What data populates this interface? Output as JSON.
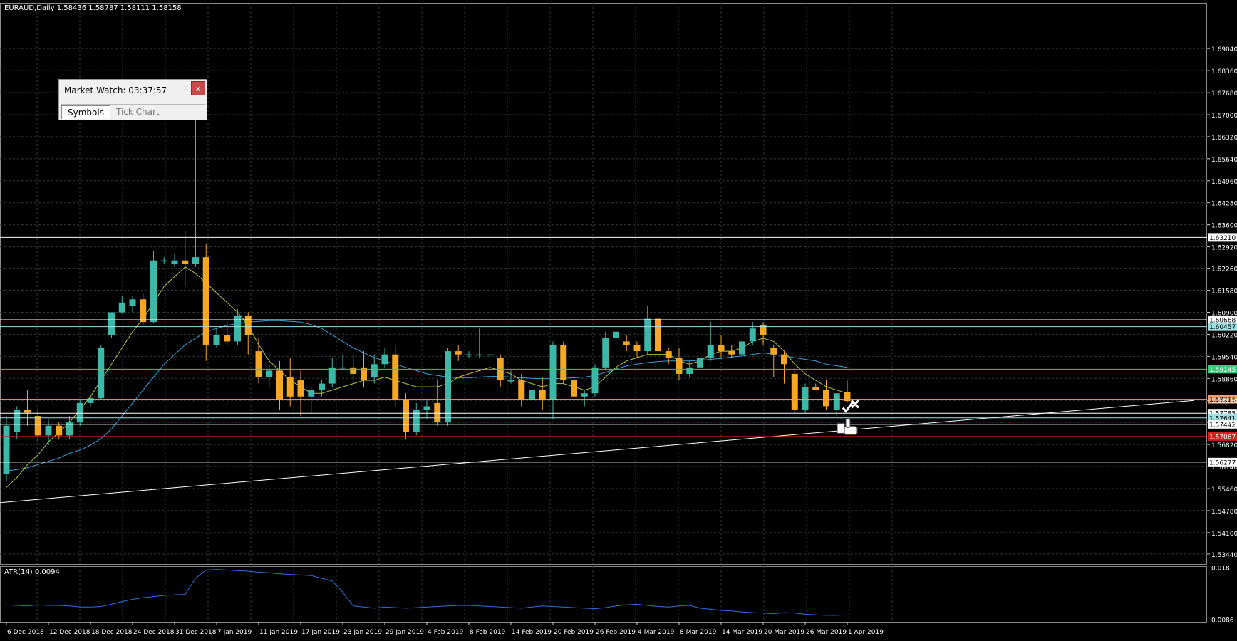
{
  "window": {
    "symbol_info": "EURAUD,Daily  1.58436 1.58787 1.58111 1.58158",
    "indicator_label": "ATR(14) 0.0094"
  },
  "market_watch": {
    "title": "Market Watch: 03:37:57",
    "close_label": "x",
    "tabs": [
      "Symbols",
      "Tick Chart"
    ]
  },
  "colors": {
    "background": "#000000",
    "grid": "#2e3a3a",
    "bull": "#3cb8a8",
    "bear": "#f5a623",
    "ma_fast": "#b5c93a",
    "ma_slow": "#3aa0d8",
    "atr": "#2f6fe0",
    "hline_white": "#ffffff",
    "hline_cyan": "#9fe0e0",
    "hline_green": "#3cc97a",
    "hline_orange": "#f0a070",
    "hline_red": "#d02020",
    "trendline": "#ffffff"
  },
  "chart_data": [
    {
      "type": "candlestick",
      "title": "EURAUD,Daily",
      "ylim": [
        1.5313,
        1.7045
      ],
      "y_ticks": [
        "1.69040",
        "1.68360",
        "1.67680",
        "1.67000",
        "1.66320",
        "1.65640",
        "1.64960",
        "1.64280",
        "1.63600",
        "1.62920",
        "1.62260",
        "1.61580",
        "1.60900",
        "1.60220",
        "1.59540",
        "1.58860",
        "1.58180",
        "1.57500",
        "1.56820",
        "1.56140",
        "1.55460",
        "1.54780",
        "1.54100",
        "1.53440"
      ],
      "x_ticks": [
        {
          "label": "6 Dec 2018",
          "index": 0
        },
        {
          "label": "12 Dec 2018",
          "index": 4
        },
        {
          "label": "18 Dec 2018",
          "index": 8
        },
        {
          "label": "24 Dec 2018",
          "index": 12
        },
        {
          "label": "31 Dec 2018",
          "index": 16
        },
        {
          "label": "7 Jan 2019",
          "index": 20
        },
        {
          "label": "11 Jan 2019",
          "index": 24
        },
        {
          "label": "17 Jan 2019",
          "index": 28
        },
        {
          "label": "23 Jan 2019",
          "index": 32
        },
        {
          "label": "29 Jan 2019",
          "index": 36
        },
        {
          "label": "4 Feb 2019",
          "index": 40
        },
        {
          "label": "8 Feb 2019",
          "index": 44
        },
        {
          "label": "14 Feb 2019",
          "index": 48
        },
        {
          "label": "20 Feb 2019",
          "index": 52
        },
        {
          "label": "26 Feb 2019",
          "index": 56
        },
        {
          "label": "4 Mar 2019",
          "index": 60
        },
        {
          "label": "8 Mar 2019",
          "index": 64
        },
        {
          "label": "14 Mar 2019",
          "index": 68
        },
        {
          "label": "20 Mar 2019",
          "index": 72
        },
        {
          "label": "26 Mar 2019",
          "index": 76
        },
        {
          "label": "1 Apr 2019",
          "index": 80
        }
      ],
      "candles": [
        {
          "o": 1.559,
          "h": 1.577,
          "l": 1.557,
          "c": 1.574
        },
        {
          "o": 1.572,
          "h": 1.58,
          "l": 1.57,
          "c": 1.579
        },
        {
          "o": 1.579,
          "h": 1.585,
          "l": 1.574,
          "c": 1.578
        },
        {
          "o": 1.577,
          "h": 1.579,
          "l": 1.569,
          "c": 1.571
        },
        {
          "o": 1.571,
          "h": 1.576,
          "l": 1.568,
          "c": 1.574
        },
        {
          "o": 1.574,
          "h": 1.575,
          "l": 1.57,
          "c": 1.571
        },
        {
          "o": 1.571,
          "h": 1.577,
          "l": 1.57,
          "c": 1.575
        },
        {
          "o": 1.575,
          "h": 1.582,
          "l": 1.574,
          "c": 1.581
        },
        {
          "o": 1.581,
          "h": 1.583,
          "l": 1.58,
          "c": 1.5825
        },
        {
          "o": 1.5825,
          "h": 1.599,
          "l": 1.582,
          "c": 1.598
        },
        {
          "o": 1.602,
          "h": 1.609,
          "l": 1.601,
          "c": 1.609
        },
        {
          "o": 1.609,
          "h": 1.614,
          "l": 1.6085,
          "c": 1.612
        },
        {
          "o": 1.611,
          "h": 1.614,
          "l": 1.609,
          "c": 1.613
        },
        {
          "o": 1.613,
          "h": 1.615,
          "l": 1.605,
          "c": 1.606
        },
        {
          "o": 1.606,
          "h": 1.628,
          "l": 1.6055,
          "c": 1.625
        },
        {
          "o": 1.625,
          "h": 1.626,
          "l": 1.624,
          "c": 1.625
        },
        {
          "o": 1.624,
          "h": 1.627,
          "l": 1.623,
          "c": 1.625
        },
        {
          "o": 1.625,
          "h": 1.634,
          "l": 1.617,
          "c": 1.624
        },
        {
          "o": 1.624,
          "h": 1.67,
          "l": 1.623,
          "c": 1.626
        },
        {
          "o": 1.626,
          "h": 1.63,
          "l": 1.594,
          "c": 1.599
        },
        {
          "o": 1.599,
          "h": 1.604,
          "l": 1.598,
          "c": 1.602
        },
        {
          "o": 1.602,
          "h": 1.606,
          "l": 1.599,
          "c": 1.6
        },
        {
          "o": 1.6,
          "h": 1.61,
          "l": 1.599,
          "c": 1.608
        },
        {
          "o": 1.608,
          "h": 1.609,
          "l": 1.596,
          "c": 1.602
        },
        {
          "o": 1.597,
          "h": 1.601,
          "l": 1.587,
          "c": 1.589
        },
        {
          "o": 1.589,
          "h": 1.593,
          "l": 1.586,
          "c": 1.591
        },
        {
          "o": 1.591,
          "h": 1.594,
          "l": 1.579,
          "c": 1.582
        },
        {
          "o": 1.589,
          "h": 1.595,
          "l": 1.58,
          "c": 1.583
        },
        {
          "o": 1.588,
          "h": 1.591,
          "l": 1.577,
          "c": 1.583
        },
        {
          "o": 1.583,
          "h": 1.586,
          "l": 1.578,
          "c": 1.585
        },
        {
          "o": 1.585,
          "h": 1.588,
          "l": 1.583,
          "c": 1.587
        },
        {
          "o": 1.587,
          "h": 1.595,
          "l": 1.586,
          "c": 1.592
        },
        {
          "o": 1.592,
          "h": 1.596,
          "l": 1.591,
          "c": 1.592
        },
        {
          "o": 1.592,
          "h": 1.596,
          "l": 1.588,
          "c": 1.59
        },
        {
          "o": 1.592,
          "h": 1.597,
          "l": 1.586,
          "c": 1.588
        },
        {
          "o": 1.589,
          "h": 1.596,
          "l": 1.587,
          "c": 1.593
        },
        {
          "o": 1.593,
          "h": 1.598,
          "l": 1.592,
          "c": 1.596
        },
        {
          "o": 1.596,
          "h": 1.599,
          "l": 1.58,
          "c": 1.582
        },
        {
          "o": 1.582,
          "h": 1.584,
          "l": 1.57,
          "c": 1.572
        },
        {
          "o": 1.572,
          "h": 1.581,
          "l": 1.571,
          "c": 1.579
        },
        {
          "o": 1.579,
          "h": 1.582,
          "l": 1.576,
          "c": 1.58
        },
        {
          "o": 1.581,
          "h": 1.588,
          "l": 1.574,
          "c": 1.575
        },
        {
          "o": 1.575,
          "h": 1.598,
          "l": 1.574,
          "c": 1.597
        },
        {
          "o": 1.597,
          "h": 1.599,
          "l": 1.594,
          "c": 1.596
        },
        {
          "o": 1.596,
          "h": 1.597,
          "l": 1.595,
          "c": 1.596
        },
        {
          "o": 1.596,
          "h": 1.604,
          "l": 1.595,
          "c": 1.596
        },
        {
          "o": 1.596,
          "h": 1.597,
          "l": 1.595,
          "c": 1.596
        },
        {
          "o": 1.595,
          "h": 1.596,
          "l": 1.586,
          "c": 1.588
        },
        {
          "o": 1.588,
          "h": 1.591,
          "l": 1.587,
          "c": 1.588
        },
        {
          "o": 1.588,
          "h": 1.59,
          "l": 1.58,
          "c": 1.582
        },
        {
          "o": 1.582,
          "h": 1.588,
          "l": 1.581,
          "c": 1.585
        },
        {
          "o": 1.585,
          "h": 1.589,
          "l": 1.579,
          "c": 1.582
        },
        {
          "o": 1.582,
          "h": 1.6,
          "l": 1.576,
          "c": 1.599
        },
        {
          "o": 1.599,
          "h": 1.6,
          "l": 1.587,
          "c": 1.588
        },
        {
          "o": 1.588,
          "h": 1.59,
          "l": 1.581,
          "c": 1.583
        },
        {
          "o": 1.583,
          "h": 1.585,
          "l": 1.58,
          "c": 1.584
        },
        {
          "o": 1.584,
          "h": 1.593,
          "l": 1.583,
          "c": 1.592
        },
        {
          "o": 1.592,
          "h": 1.603,
          "l": 1.591,
          "c": 1.601
        },
        {
          "o": 1.601,
          "h": 1.604,
          "l": 1.599,
          "c": 1.603
        },
        {
          "o": 1.6,
          "h": 1.602,
          "l": 1.597,
          "c": 1.599
        },
        {
          "o": 1.599,
          "h": 1.6,
          "l": 1.595,
          "c": 1.597
        },
        {
          "o": 1.597,
          "h": 1.611,
          "l": 1.596,
          "c": 1.607
        },
        {
          "o": 1.607,
          "h": 1.609,
          "l": 1.596,
          "c": 1.597
        },
        {
          "o": 1.597,
          "h": 1.598,
          "l": 1.593,
          "c": 1.595
        },
        {
          "o": 1.595,
          "h": 1.598,
          "l": 1.588,
          "c": 1.59
        },
        {
          "o": 1.59,
          "h": 1.594,
          "l": 1.589,
          "c": 1.592
        },
        {
          "o": 1.592,
          "h": 1.596,
          "l": 1.591,
          "c": 1.595
        },
        {
          "o": 1.595,
          "h": 1.606,
          "l": 1.594,
          "c": 1.599
        },
        {
          "o": 1.599,
          "h": 1.602,
          "l": 1.595,
          "c": 1.597
        },
        {
          "o": 1.597,
          "h": 1.599,
          "l": 1.595,
          "c": 1.596
        },
        {
          "o": 1.596,
          "h": 1.602,
          "l": 1.595,
          "c": 1.6
        },
        {
          "o": 1.6,
          "h": 1.606,
          "l": 1.599,
          "c": 1.604
        },
        {
          "o": 1.605,
          "h": 1.606,
          "l": 1.599,
          "c": 1.602
        },
        {
          "o": 1.598,
          "h": 1.599,
          "l": 1.589,
          "c": 1.596
        },
        {
          "o": 1.596,
          "h": 1.597,
          "l": 1.587,
          "c": 1.593
        },
        {
          "o": 1.59,
          "h": 1.592,
          "l": 1.578,
          "c": 1.579
        },
        {
          "o": 1.579,
          "h": 1.587,
          "l": 1.578,
          "c": 1.586
        },
        {
          "o": 1.586,
          "h": 1.587,
          "l": 1.585,
          "c": 1.585
        },
        {
          "o": 1.585,
          "h": 1.588,
          "l": 1.579,
          "c": 1.58
        },
        {
          "o": 1.579,
          "h": 1.584,
          "l": 1.577,
          "c": 1.584
        },
        {
          "o": 1.5844,
          "h": 1.5879,
          "l": 1.5811,
          "c": 1.5816
        }
      ],
      "ma_fast": [
        1.555,
        1.558,
        1.562,
        1.565,
        1.569,
        1.572,
        1.575,
        1.579,
        1.583,
        1.588,
        1.593,
        1.598,
        1.603,
        1.607,
        1.612,
        1.617,
        1.62,
        1.623,
        1.621,
        1.618,
        1.615,
        1.612,
        1.609,
        1.605,
        1.599,
        1.594,
        1.591,
        1.588,
        1.586,
        1.584,
        1.584,
        1.585,
        1.586,
        1.587,
        1.588,
        1.588,
        1.589,
        1.588,
        1.587,
        1.586,
        1.586,
        1.586,
        1.587,
        1.589,
        1.59,
        1.591,
        1.592,
        1.591,
        1.59,
        1.588,
        1.587,
        1.586,
        1.587,
        1.587,
        1.586,
        1.585,
        1.586,
        1.589,
        1.592,
        1.594,
        1.595,
        1.596,
        1.596,
        1.596,
        1.594,
        1.593,
        1.594,
        1.596,
        1.597,
        1.597,
        1.598,
        1.6,
        1.601,
        1.6,
        1.597,
        1.593,
        1.59,
        1.588,
        1.586,
        1.585,
        1.584
      ],
      "ma_slow": [
        1.56,
        1.5605,
        1.561,
        1.562,
        1.563,
        1.564,
        1.5655,
        1.5665,
        1.568,
        1.57,
        1.573,
        1.577,
        1.581,
        1.585,
        1.589,
        1.593,
        1.596,
        1.599,
        1.601,
        1.603,
        1.604,
        1.605,
        1.6055,
        1.606,
        1.6062,
        1.6064,
        1.6064,
        1.6062,
        1.606,
        1.6052,
        1.604,
        1.602,
        1.6,
        1.598,
        1.5965,
        1.595,
        1.594,
        1.593,
        1.592,
        1.591,
        1.59,
        1.5895,
        1.589,
        1.5888,
        1.5888,
        1.589,
        1.5892,
        1.5892,
        1.589,
        1.5888,
        1.5886,
        1.5885,
        1.5885,
        1.5886,
        1.5888,
        1.589,
        1.5895,
        1.5905,
        1.5915,
        1.5925,
        1.593,
        1.5935,
        1.5938,
        1.594,
        1.594,
        1.594,
        1.5942,
        1.5945,
        1.5948,
        1.5952,
        1.5955,
        1.596,
        1.5965,
        1.596,
        1.5955,
        1.595,
        1.5945,
        1.594,
        1.593,
        1.5925,
        1.592
      ],
      "horizontal_lines": [
        {
          "price": 1.6321,
          "label": "1.63210",
          "role": "white"
        },
        {
          "price": 1.60668,
          "label": "1.60668",
          "role": "white"
        },
        {
          "price": 1.60457,
          "label": "1.60457",
          "role": "cyan"
        },
        {
          "price": 1.59145,
          "label": "1.59145",
          "role": "green"
        },
        {
          "price": 1.58216,
          "label": "1.58216",
          "role": "orange"
        },
        {
          "price": 1.57785,
          "label": "1.57785",
          "role": "white"
        },
        {
          "price": 1.57641,
          "label": "1.57641",
          "role": "cyan"
        },
        {
          "price": 1.57442,
          "label": "1.57442",
          "role": "white"
        },
        {
          "price": 1.57067,
          "label": "1.57067",
          "role": "red"
        },
        {
          "price": 1.56277,
          "label": "1.56277",
          "role": "white"
        }
      ],
      "trendline": {
        "from": {
          "index": -0.8,
          "price": 1.5502
        },
        "to": {
          "index": 113,
          "price": 1.5818
        }
      }
    },
    {
      "type": "line",
      "title": "ATR(14) 0.0094",
      "ylim": [
        0.008,
        0.0182
      ],
      "y_ticks": [
        "0.018",
        "0.0086"
      ],
      "values": [
        0.0112,
        0.0111,
        0.011,
        0.0112,
        0.0111,
        0.0111,
        0.011,
        0.0108,
        0.0108,
        0.0109,
        0.0113,
        0.0118,
        0.0122,
        0.0125,
        0.0127,
        0.0129,
        0.013,
        0.0131,
        0.016,
        0.0175,
        0.0176,
        0.0175,
        0.0174,
        0.0173,
        0.0171,
        0.017,
        0.0168,
        0.0167,
        0.0166,
        0.0165,
        0.016,
        0.0155,
        0.0135,
        0.011,
        0.0108,
        0.0106,
        0.0108,
        0.0107,
        0.0106,
        0.0107,
        0.0108,
        0.0109,
        0.011,
        0.0111,
        0.0111,
        0.011,
        0.0109,
        0.0108,
        0.0107,
        0.0106,
        0.0108,
        0.011,
        0.0109,
        0.0108,
        0.0107,
        0.0106,
        0.0105,
        0.0107,
        0.011,
        0.0112,
        0.0113,
        0.0111,
        0.0109,
        0.0108,
        0.011,
        0.0111,
        0.0106,
        0.0104,
        0.0102,
        0.0101,
        0.0099,
        0.0098,
        0.0097,
        0.0096,
        0.0098,
        0.0097,
        0.0095,
        0.0094,
        0.0093,
        0.0093,
        0.0094
      ]
    }
  ]
}
